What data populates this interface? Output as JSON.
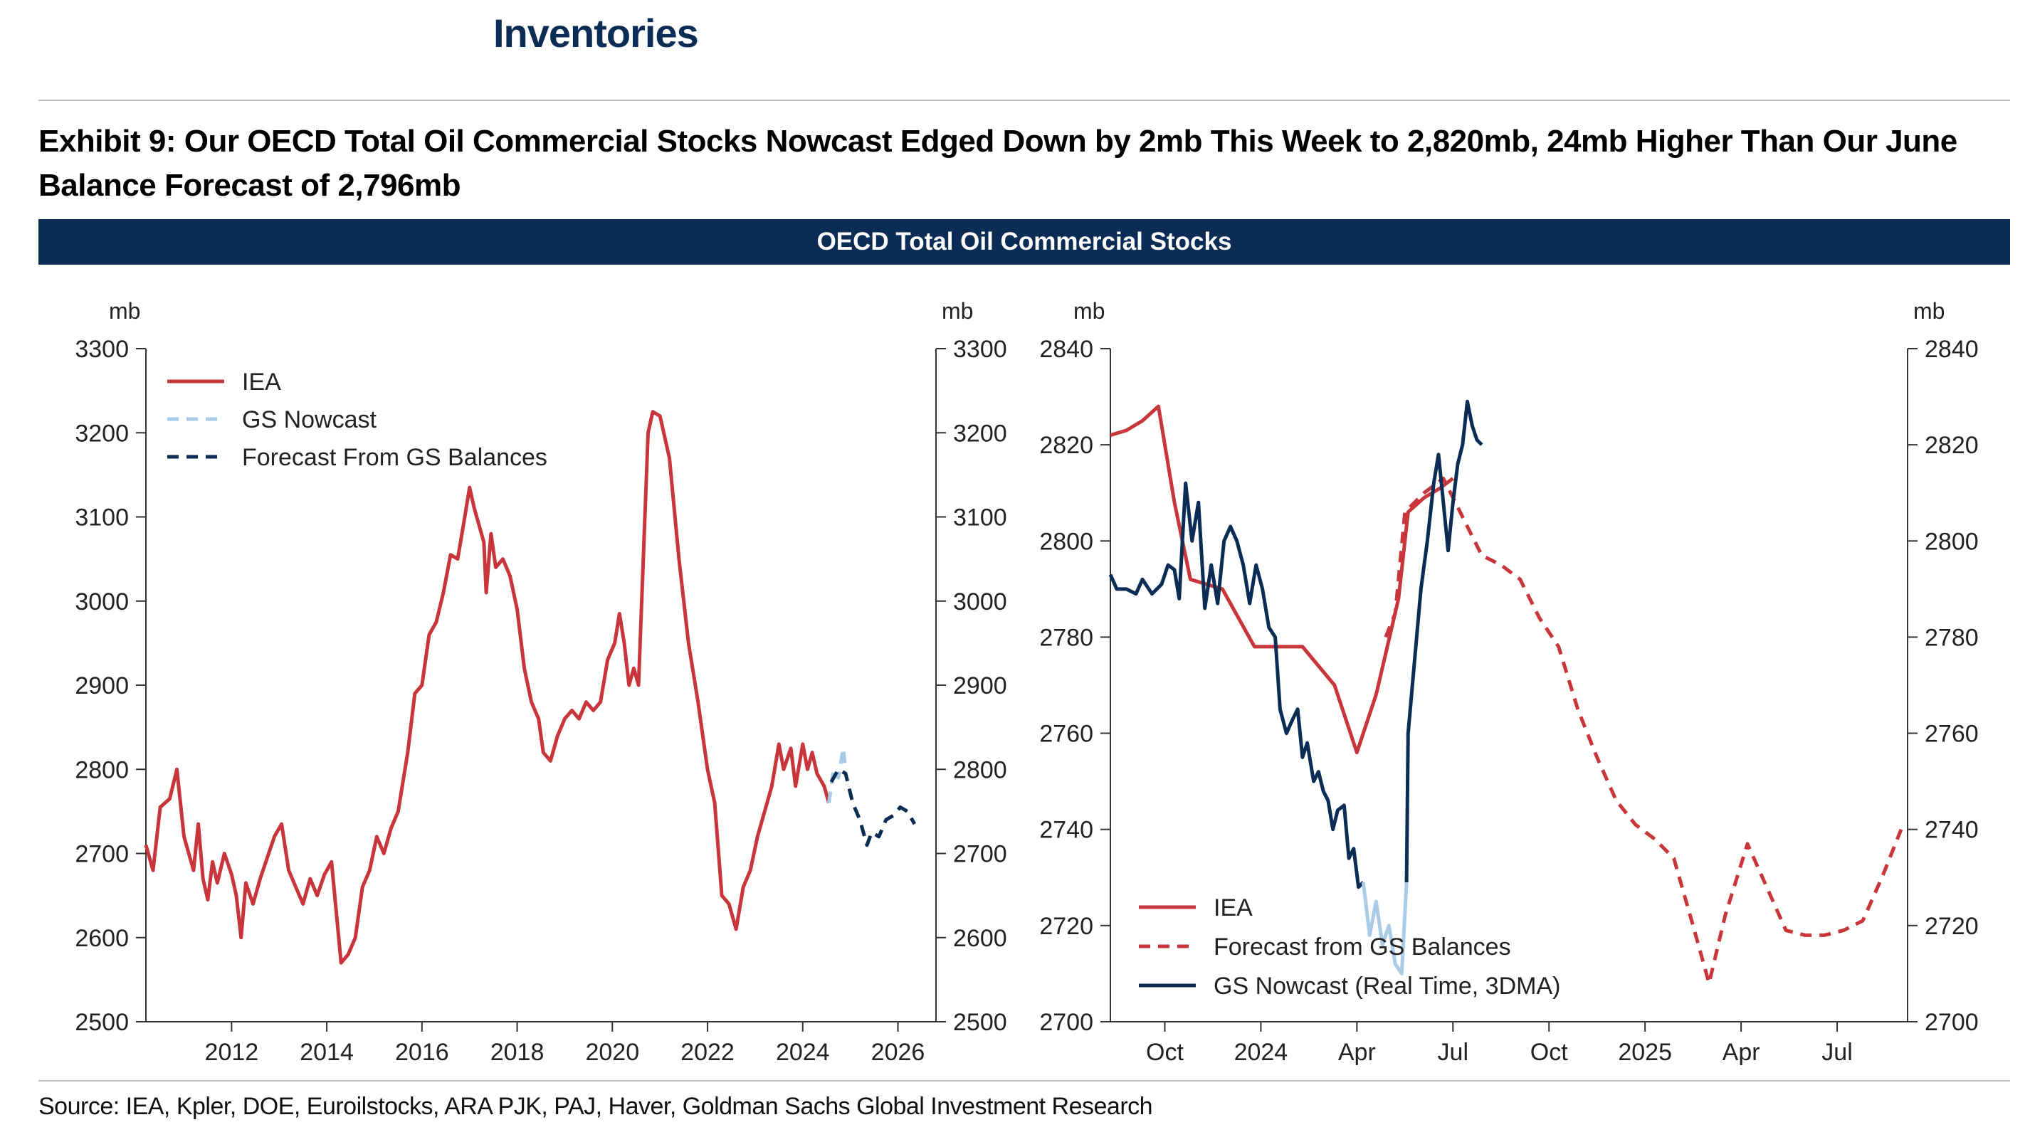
{
  "header": {
    "section_title": "Inventories",
    "exhibit_title": "Exhibit 9: Our OECD Total Oil Commercial Stocks Nowcast Edged Down by 2mb This Week to 2,820mb, 24mb Higher Than Our June Balance Forecast of 2,796mb",
    "banner": "OECD Total Oil Commercial Stocks"
  },
  "footer": {
    "source": "Source: IEA, Kpler, DOE, Euroilstocks, ARA PJK, PAJ, Haver, Goldman Sachs Global Investment Research"
  },
  "colors": {
    "iea": "#c8363b",
    "nowcast_light": "#a9cbe8",
    "nowcast_dark": "#0b2d55",
    "forecast_dark": "#0b2d55",
    "forecast_red": "#c8363b",
    "banner": "#0b2d55"
  },
  "chart_data": [
    {
      "type": "line",
      "panel": "left",
      "unit_left": "mb",
      "unit_right": "mb",
      "ylim": [
        2500,
        3300
      ],
      "yticks": [
        2500,
        2600,
        2700,
        2800,
        2900,
        3000,
        3100,
        3200,
        3300
      ],
      "xlim": [
        2010.2,
        2026.8
      ],
      "xticks": [
        2012,
        2014,
        2016,
        2018,
        2020,
        2022,
        2024,
        2026
      ],
      "legend": [
        "IEA",
        "GS Nowcast",
        "Forecast From GS Balances"
      ],
      "series": [
        {
          "name": "IEA",
          "style": "solid",
          "color": "iea",
          "points": [
            [
              2010.2,
              2710
            ],
            [
              2010.35,
              2680
            ],
            [
              2010.5,
              2755
            ],
            [
              2010.7,
              2765
            ],
            [
              2010.85,
              2800
            ],
            [
              2011.0,
              2720
            ],
            [
              2011.1,
              2700
            ],
            [
              2011.2,
              2680
            ],
            [
              2011.3,
              2735
            ],
            [
              2011.4,
              2670
            ],
            [
              2011.5,
              2645
            ],
            [
              2011.6,
              2690
            ],
            [
              2011.7,
              2665
            ],
            [
              2011.85,
              2700
            ],
            [
              2012.0,
              2675
            ],
            [
              2012.1,
              2650
            ],
            [
              2012.2,
              2600
            ],
            [
              2012.3,
              2665
            ],
            [
              2012.45,
              2640
            ],
            [
              2012.6,
              2670
            ],
            [
              2012.75,
              2695
            ],
            [
              2012.9,
              2720
            ],
            [
              2013.05,
              2735
            ],
            [
              2013.2,
              2680
            ],
            [
              2013.35,
              2660
            ],
            [
              2013.5,
              2640
            ],
            [
              2013.65,
              2670
            ],
            [
              2013.8,
              2650
            ],
            [
              2013.95,
              2675
            ],
            [
              2014.1,
              2690
            ],
            [
              2014.2,
              2630
            ],
            [
              2014.3,
              2570
            ],
            [
              2014.45,
              2580
            ],
            [
              2014.6,
              2600
            ],
            [
              2014.75,
              2660
            ],
            [
              2014.9,
              2680
            ],
            [
              2015.05,
              2720
            ],
            [
              2015.2,
              2700
            ],
            [
              2015.35,
              2730
            ],
            [
              2015.5,
              2750
            ],
            [
              2015.7,
              2820
            ],
            [
              2015.85,
              2890
            ],
            [
              2016.0,
              2900
            ],
            [
              2016.15,
              2960
            ],
            [
              2016.3,
              2975
            ],
            [
              2016.45,
              3010
            ],
            [
              2016.6,
              3055
            ],
            [
              2016.75,
              3050
            ],
            [
              2016.9,
              3100
            ],
            [
              2017.0,
              3135
            ],
            [
              2017.1,
              3110
            ],
            [
              2017.2,
              3090
            ],
            [
              2017.3,
              3070
            ],
            [
              2017.35,
              3010
            ],
            [
              2017.45,
              3080
            ],
            [
              2017.55,
              3040
            ],
            [
              2017.7,
              3050
            ],
            [
              2017.85,
              3030
            ],
            [
              2018.0,
              2990
            ],
            [
              2018.15,
              2920
            ],
            [
              2018.3,
              2880
            ],
            [
              2018.45,
              2860
            ],
            [
              2018.55,
              2820
            ],
            [
              2018.7,
              2810
            ],
            [
              2018.85,
              2840
            ],
            [
              2019.0,
              2860
            ],
            [
              2019.15,
              2870
            ],
            [
              2019.3,
              2860
            ],
            [
              2019.45,
              2880
            ],
            [
              2019.6,
              2870
            ],
            [
              2019.75,
              2880
            ],
            [
              2019.9,
              2930
            ],
            [
              2020.05,
              2950
            ],
            [
              2020.15,
              2985
            ],
            [
              2020.25,
              2950
            ],
            [
              2020.35,
              2900
            ],
            [
              2020.45,
              2920
            ],
            [
              2020.55,
              2900
            ],
            [
              2020.65,
              3050
            ],
            [
              2020.75,
              3200
            ],
            [
              2020.85,
              3225
            ],
            [
              2021.0,
              3220
            ],
            [
              2021.2,
              3170
            ],
            [
              2021.4,
              3050
            ],
            [
              2021.6,
              2950
            ],
            [
              2021.8,
              2880
            ],
            [
              2022.0,
              2800
            ],
            [
              2022.15,
              2760
            ],
            [
              2022.3,
              2650
            ],
            [
              2022.45,
              2640
            ],
            [
              2022.6,
              2610
            ],
            [
              2022.75,
              2660
            ],
            [
              2022.9,
              2680
            ],
            [
              2023.05,
              2720
            ],
            [
              2023.2,
              2750
            ],
            [
              2023.35,
              2780
            ],
            [
              2023.5,
              2830
            ],
            [
              2023.6,
              2800
            ],
            [
              2023.75,
              2825
            ],
            [
              2023.85,
              2780
            ],
            [
              2024.0,
              2830
            ],
            [
              2024.1,
              2800
            ],
            [
              2024.2,
              2820
            ],
            [
              2024.3,
              2795
            ],
            [
              2024.45,
              2780
            ],
            [
              2024.55,
              2760
            ]
          ]
        },
        {
          "name": "GS Nowcast",
          "style": "dashed",
          "color": "nowcast_light",
          "points": [
            [
              2024.55,
              2760
            ],
            [
              2024.65,
              2800
            ],
            [
              2024.75,
              2790
            ],
            [
              2024.85,
              2825
            ],
            [
              2024.9,
              2800
            ]
          ]
        },
        {
          "name": "Forecast From GS Balances",
          "style": "dashed",
          "color": "forecast_dark",
          "points": [
            [
              2024.6,
              2785
            ],
            [
              2024.75,
              2800
            ],
            [
              2024.9,
              2795
            ],
            [
              2025.05,
              2760
            ],
            [
              2025.2,
              2740
            ],
            [
              2025.35,
              2710
            ],
            [
              2025.45,
              2725
            ],
            [
              2025.6,
              2720
            ],
            [
              2025.75,
              2740
            ],
            [
              2025.9,
              2745
            ],
            [
              2026.05,
              2755
            ],
            [
              2026.2,
              2750
            ],
            [
              2026.35,
              2735
            ]
          ]
        }
      ]
    },
    {
      "type": "line",
      "panel": "right",
      "unit_left": "mb",
      "unit_right": "mb",
      "ylim": [
        2700,
        2840
      ],
      "yticks": [
        2700,
        2720,
        2740,
        2760,
        2780,
        2800,
        2820,
        2840
      ],
      "xlim": [
        0,
        24.9
      ],
      "xticks": [
        "Oct",
        "2024",
        "Apr",
        "Jul",
        "Oct",
        "2025",
        "Apr",
        "Jul"
      ],
      "xtick_positions": [
        1.7,
        4.7,
        7.7,
        10.7,
        13.7,
        16.7,
        19.7,
        22.7
      ],
      "legend": [
        "IEA",
        "Forecast from GS Balances",
        "GS Nowcast (Real Time, 3DMA)"
      ],
      "series": [
        {
          "name": "IEA",
          "style": "solid",
          "color": "iea",
          "points": [
            [
              0.0,
              2822
            ],
            [
              0.5,
              2823
            ],
            [
              1.0,
              2825
            ],
            [
              1.5,
              2828
            ],
            [
              2.0,
              2808
            ],
            [
              2.5,
              2792
            ],
            [
              3.0,
              2791
            ],
            [
              3.5,
              2790
            ],
            [
              4.0,
              2784
            ],
            [
              4.5,
              2778
            ],
            [
              5.0,
              2778
            ],
            [
              6.0,
              2778
            ],
            [
              7.0,
              2770
            ],
            [
              7.7,
              2756
            ],
            [
              8.3,
              2768
            ],
            [
              9.0,
              2788
            ],
            [
              9.3,
              2806
            ],
            [
              9.8,
              2809
            ],
            [
              10.3,
              2811
            ],
            [
              10.7,
              2813
            ]
          ]
        },
        {
          "name": "Forecast from GS Balances",
          "style": "dashed",
          "color": "forecast_red",
          "points": [
            [
              8.6,
              2780
            ],
            [
              8.9,
              2785
            ],
            [
              9.2,
              2806
            ],
            [
              9.8,
              2810
            ],
            [
              10.4,
              2813
            ],
            [
              11.0,
              2805
            ],
            [
              11.6,
              2797
            ],
            [
              12.2,
              2795
            ],
            [
              12.8,
              2792
            ],
            [
              13.4,
              2784
            ],
            [
              14.0,
              2778
            ],
            [
              14.6,
              2765
            ],
            [
              15.2,
              2755
            ],
            [
              15.8,
              2746
            ],
            [
              16.4,
              2741
            ],
            [
              17.0,
              2738
            ],
            [
              17.6,
              2734
            ],
            [
              18.2,
              2720
            ],
            [
              18.7,
              2708
            ],
            [
              19.2,
              2722
            ],
            [
              19.9,
              2737
            ],
            [
              20.5,
              2728
            ],
            [
              21.1,
              2719
            ],
            [
              21.7,
              2718
            ],
            [
              22.3,
              2718
            ],
            [
              22.9,
              2719
            ],
            [
              23.5,
              2721
            ],
            [
              24.1,
              2730
            ],
            [
              24.7,
              2740
            ]
          ]
        },
        {
          "name": "GS Nowcast (Real Time, 3DMA)",
          "style": "solid",
          "color": "nowcast_dark",
          "points": [
            [
              0.0,
              2793
            ],
            [
              0.2,
              2790
            ],
            [
              0.5,
              2790
            ],
            [
              0.8,
              2789
            ],
            [
              1.0,
              2792
            ],
            [
              1.3,
              2789
            ],
            [
              1.6,
              2791
            ],
            [
              1.8,
              2795
            ],
            [
              2.0,
              2794
            ],
            [
              2.15,
              2788
            ],
            [
              2.35,
              2812
            ],
            [
              2.55,
              2800
            ],
            [
              2.75,
              2808
            ],
            [
              2.95,
              2786
            ],
            [
              3.15,
              2795
            ],
            [
              3.35,
              2787
            ],
            [
              3.55,
              2800
            ],
            [
              3.75,
              2803
            ],
            [
              3.95,
              2800
            ],
            [
              4.15,
              2795
            ],
            [
              4.35,
              2787
            ],
            [
              4.55,
              2795
            ],
            [
              4.75,
              2790
            ],
            [
              4.95,
              2782
            ],
            [
              5.15,
              2780
            ],
            [
              5.3,
              2765
            ],
            [
              5.5,
              2760
            ],
            [
              5.7,
              2763
            ],
            [
              5.85,
              2765
            ],
            [
              6.0,
              2755
            ],
            [
              6.15,
              2758
            ],
            [
              6.35,
              2750
            ],
            [
              6.5,
              2752
            ],
            [
              6.65,
              2748
            ],
            [
              6.8,
              2746
            ],
            [
              6.95,
              2740
            ],
            [
              7.1,
              2744
            ],
            [
              7.3,
              2745
            ],
            [
              7.45,
              2734
            ],
            [
              7.6,
              2736
            ],
            [
              7.75,
              2728
            ],
            [
              7.9,
              2729
            ]
          ]
        },
        {
          "name": "GS Nowcast (Real Time, 3DMA) - gap",
          "style": "solid",
          "color": "nowcast_light",
          "points": [
            [
              7.9,
              2729
            ],
            [
              8.1,
              2718
            ],
            [
              8.3,
              2725
            ],
            [
              8.5,
              2716
            ],
            [
              8.7,
              2720
            ],
            [
              8.9,
              2712
            ],
            [
              9.1,
              2710
            ],
            [
              9.25,
              2729
            ]
          ]
        },
        {
          "name": "GS Nowcast (Real Time, 3DMA) - recovery",
          "style": "solid",
          "color": "nowcast_dark",
          "points": [
            [
              9.25,
              2729
            ],
            [
              9.3,
              2760
            ],
            [
              9.5,
              2775
            ],
            [
              9.7,
              2790
            ],
            [
              9.9,
              2800
            ],
            [
              10.1,
              2812
            ],
            [
              10.25,
              2818
            ],
            [
              10.4,
              2808
            ],
            [
              10.55,
              2798
            ],
            [
              10.7,
              2808
            ],
            [
              10.85,
              2816
            ],
            [
              11.0,
              2820
            ],
            [
              11.15,
              2829
            ],
            [
              11.3,
              2824
            ],
            [
              11.45,
              2821
            ],
            [
              11.6,
              2820
            ]
          ]
        }
      ]
    }
  ]
}
